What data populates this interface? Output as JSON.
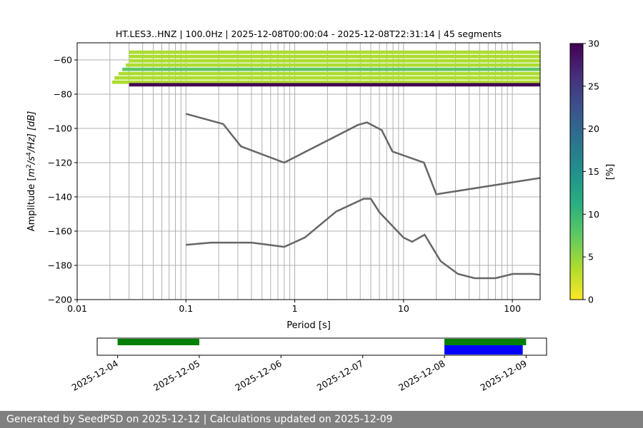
{
  "chart_data": [
    {
      "type": "heatmap",
      "title": "HT.LES3..HNZ | 100.0Hz | 2025-12-08T00:00:04 - 2025-12-08T22:31:14 | 45 segments",
      "xlabel": "Period [s]",
      "ylabel_parts": {
        "prefix": "Amplitude [",
        "m": "m",
        "sup2": "2",
        "per_s": "/s",
        "sup4": "4",
        "per_hz": "/Hz] [dB]"
      },
      "xscale": "log",
      "xlim": [
        0.01,
        180
      ],
      "ylim": [
        -200,
        -50
      ],
      "xticks": [
        0.01,
        0.1,
        1,
        10,
        100
      ],
      "xtick_labels": [
        "0.01",
        "0.1",
        "1",
        "10",
        "100"
      ],
      "yticks": [
        -200,
        -180,
        -160,
        -140,
        -120,
        -100,
        -80,
        -60
      ],
      "ytick_labels": [
        "−200",
        "−180",
        "−160",
        "−140",
        "−120",
        "−100",
        "−80",
        "−60"
      ],
      "grid": true,
      "colorbar": {
        "label": "[%]",
        "range": [
          0,
          30
        ],
        "ticks": [
          0,
          5,
          10,
          15,
          20,
          25,
          30
        ],
        "tick_labels": [
          "0",
          "5",
          "10",
          "15",
          "20",
          "25",
          "30"
        ],
        "colormap": "viridis_r"
      },
      "series": [
        {
          "name": "",
          "role": "high-noise-model",
          "color": "#666666",
          "x": [
            0.1,
            0.22,
            0.32,
            0.8,
            3.8,
            4.6,
            6.3,
            7.9,
            15.4,
            20,
            354.8
          ],
          "y": [
            -91.5,
            -97.4,
            -110.5,
            -120.0,
            -98.0,
            -96.5,
            -101.0,
            -113.5,
            -120.0,
            -138.5,
            -126.0
          ]
        },
        {
          "name": "",
          "role": "low-noise-model",
          "color": "#666666",
          "x": [
            0.1,
            0.17,
            0.4,
            0.8,
            1.24,
            2.4,
            4.3,
            5.0,
            6.0,
            10.0,
            12.0,
            15.6,
            21.9,
            31.6,
            45.0,
            70.0,
            101.0,
            154.0,
            328.0
          ],
          "y": [
            -168.0,
            -166.7,
            -166.7,
            -169.2,
            -163.7,
            -148.6,
            -141.1,
            -141.1,
            -149.0,
            -163.8,
            -166.2,
            -162.1,
            -177.5,
            -185.0,
            -187.5,
            -187.5,
            -185.0,
            -185.0,
            -187.5
          ]
        }
      ],
      "psd_bands": [
        {
          "y": -55.5,
          "from": 0.03,
          "to": 180,
          "pct": 4
        },
        {
          "y": -58.0,
          "from": 0.03,
          "to": 180,
          "pct": 5
        },
        {
          "y": -60.5,
          "from": 0.03,
          "to": 180,
          "pct": 3
        },
        {
          "y": -63.0,
          "from": 0.028,
          "to": 180,
          "pct": 4
        },
        {
          "y": -65.5,
          "from": 0.026,
          "to": 180,
          "pct": 6
        },
        {
          "y": -68.0,
          "from": 0.024,
          "to": 180,
          "pct": 3
        },
        {
          "y": -70.5,
          "from": 0.022,
          "to": 180,
          "pct": 4
        },
        {
          "y": -73.0,
          "from": 0.021,
          "to": 180,
          "pct": 3
        }
      ],
      "psd_dominant": [
        {
          "y": -74.5,
          "from": 0.03,
          "to": 180,
          "pct": 30
        }
      ]
    },
    {
      "type": "timeline",
      "xlim": [
        "2025-12-03T18:00",
        "2025-12-09T06:00"
      ],
      "xtick_labels": [
        "2025-12-04",
        "2025-12-05",
        "2025-12-06",
        "2025-12-07",
        "2025-12-08",
        "2025-12-09"
      ],
      "xticks": [
        "2025-12-04",
        "2025-12-05",
        "2025-12-06",
        "2025-12-07",
        "2025-12-08",
        "2025-12-09"
      ],
      "bars": [
        {
          "color": "#008000",
          "row": "top",
          "start": "2025-12-04T00:00",
          "end": "2025-12-05T00:00"
        },
        {
          "color": "#008000",
          "row": "top",
          "start": "2025-12-08T00:00",
          "end": "2025-12-09T00:00"
        },
        {
          "color": "#0000ff",
          "row": "bottom",
          "start": "2025-12-08T00:00",
          "end": "2025-12-08T23:00"
        }
      ]
    }
  ],
  "footer": {
    "text": "Generated by SeedPSD on 2025-12-12 | Calculations updated on 2025-12-09"
  }
}
